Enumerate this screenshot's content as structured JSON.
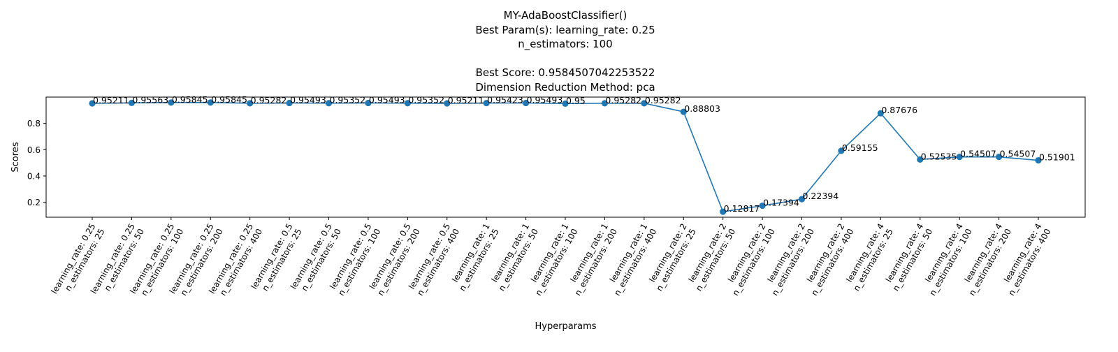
{
  "chart_data": {
    "type": "line",
    "title_lines": [
      "MY-AdaBoostClassifier()",
      "Best Param(s): learning_rate: 0.25",
      "n_estimators: 100",
      "",
      "Best Score: 0.9584507042253522",
      "Dimension Reduction Method: pca"
    ],
    "xlabel": "Hyperparams",
    "ylabel": "Scores",
    "categories": [
      [
        "learning_rate: 0.25",
        "n_estimators: 25"
      ],
      [
        "learning_rate: 0.25",
        "n_estimators: 50"
      ],
      [
        "learning_rate: 0.25",
        "n_estimators: 100"
      ],
      [
        "learning_rate: 0.25",
        "n_estimators: 200"
      ],
      [
        "learning_rate: 0.25",
        "n_estimators: 400"
      ],
      [
        "learning_rate: 0.5",
        "n_estimators: 25"
      ],
      [
        "learning_rate: 0.5",
        "n_estimators: 50"
      ],
      [
        "learning_rate: 0.5",
        "n_estimators: 100"
      ],
      [
        "learning_rate: 0.5",
        "n_estimators: 200"
      ],
      [
        "learning_rate: 0.5",
        "n_estimators: 400"
      ],
      [
        "learning_rate: 1",
        "n_estimators: 25"
      ],
      [
        "learning_rate: 1",
        "n_estimators: 50"
      ],
      [
        "learning_rate: 1",
        "n_estimators: 100"
      ],
      [
        "learning_rate: 1",
        "n_estimators: 200"
      ],
      [
        "learning_rate: 1",
        "n_estimators: 400"
      ],
      [
        "learning_rate: 2",
        "n_estimators: 25"
      ],
      [
        "learning_rate: 2",
        "n_estimators: 50"
      ],
      [
        "learning_rate: 2",
        "n_estimators: 100"
      ],
      [
        "learning_rate: 2",
        "n_estimators: 200"
      ],
      [
        "learning_rate: 2",
        "n_estimators: 400"
      ],
      [
        "learning_rate: 4",
        "n_estimators: 25"
      ],
      [
        "learning_rate: 4",
        "n_estimators: 50"
      ],
      [
        "learning_rate: 4",
        "n_estimators: 100"
      ],
      [
        "learning_rate: 4",
        "n_estimators: 200"
      ],
      [
        "learning_rate: 4",
        "n_estimators: 400"
      ]
    ],
    "values": [
      0.95211,
      0.95563,
      0.95845,
      0.95845,
      0.95282,
      0.95493,
      0.95352,
      0.95493,
      0.95352,
      0.95211,
      0.95423,
      0.95493,
      0.95,
      0.95282,
      0.95282,
      0.88803,
      0.12817,
      0.17394,
      0.22394,
      0.59155,
      0.87676,
      0.52535,
      0.54507,
      0.54507,
      0.51901
    ],
    "data_labels": [
      "0.95211",
      "0.95563",
      "0.95845",
      "0.95845",
      "0.95282",
      "0.95493",
      "0.95352",
      "0.95493",
      "0.95352",
      "0.95211",
      "0.95423",
      "0.95493",
      "0.95",
      "0.95282",
      "0.95282",
      "0.88803",
      "0.12817",
      "0.17394",
      "0.22394",
      "0.59155",
      "0.87676",
      "0.52535",
      "0.54507",
      "0.54507",
      "0.51901"
    ],
    "yticks": [
      0.2,
      0.4,
      0.6,
      0.8
    ],
    "ytick_labels": [
      "0.2",
      "0.4",
      "0.6",
      "0.8"
    ],
    "ylim": [
      0.0866,
      0.9998
    ],
    "grid": false,
    "line_color": "#1f77b4",
    "marker": "circle"
  }
}
